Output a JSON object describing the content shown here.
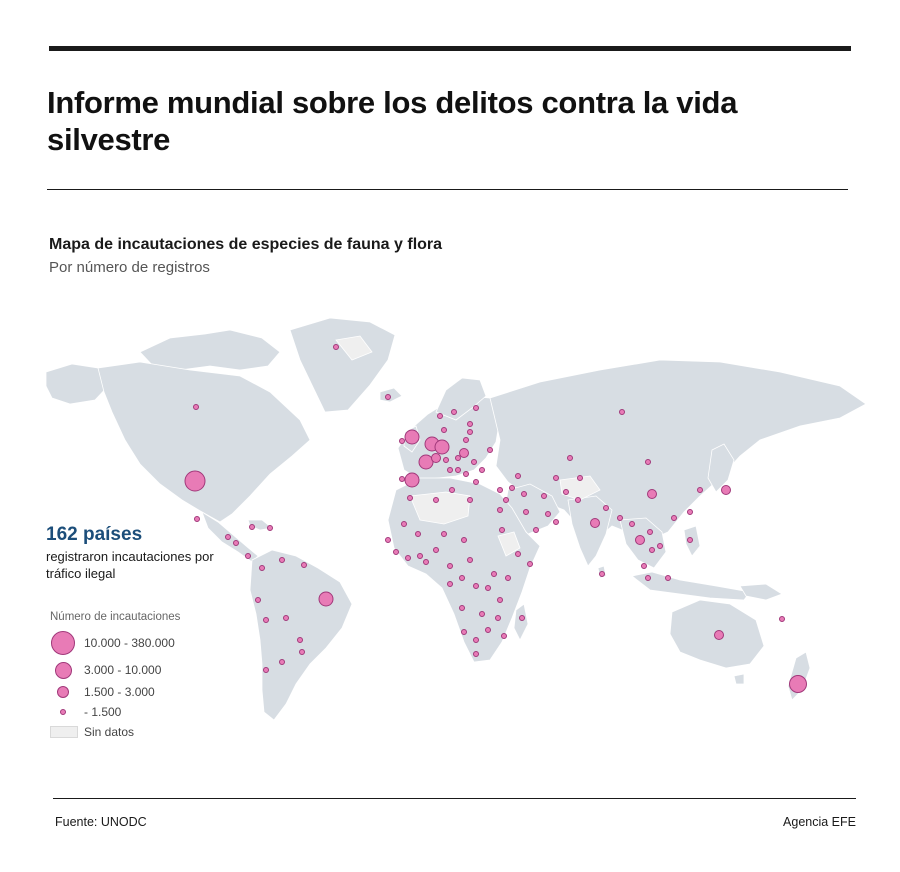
{
  "header": {
    "title": "Informe mundial sobre los delitos contra la vida silvestre"
  },
  "map": {
    "title": "Mapa de incautaciones de especies de fauna y flora",
    "subtitle": "Por número de registros",
    "colors": {
      "land": "#d7dde3",
      "no_data": "#efefef",
      "marker_fill": "#e87bb6",
      "marker_stroke": "#a1387a"
    }
  },
  "callout": {
    "number": "162 países",
    "text": "registraron incautaciones por tráfico ilegal"
  },
  "legend": {
    "title": "Número de incautaciones",
    "items": [
      {
        "label": "10.000 - 380.000"
      },
      {
        "label": "3.000 - 10.000"
      },
      {
        "label": "1.500 - 3.000"
      },
      {
        "label": "-  1.500"
      }
    ],
    "no_data_label": "Sin datos"
  },
  "footer": {
    "source": "Fuente: UNODC",
    "credit": "Agencia EFE"
  }
}
